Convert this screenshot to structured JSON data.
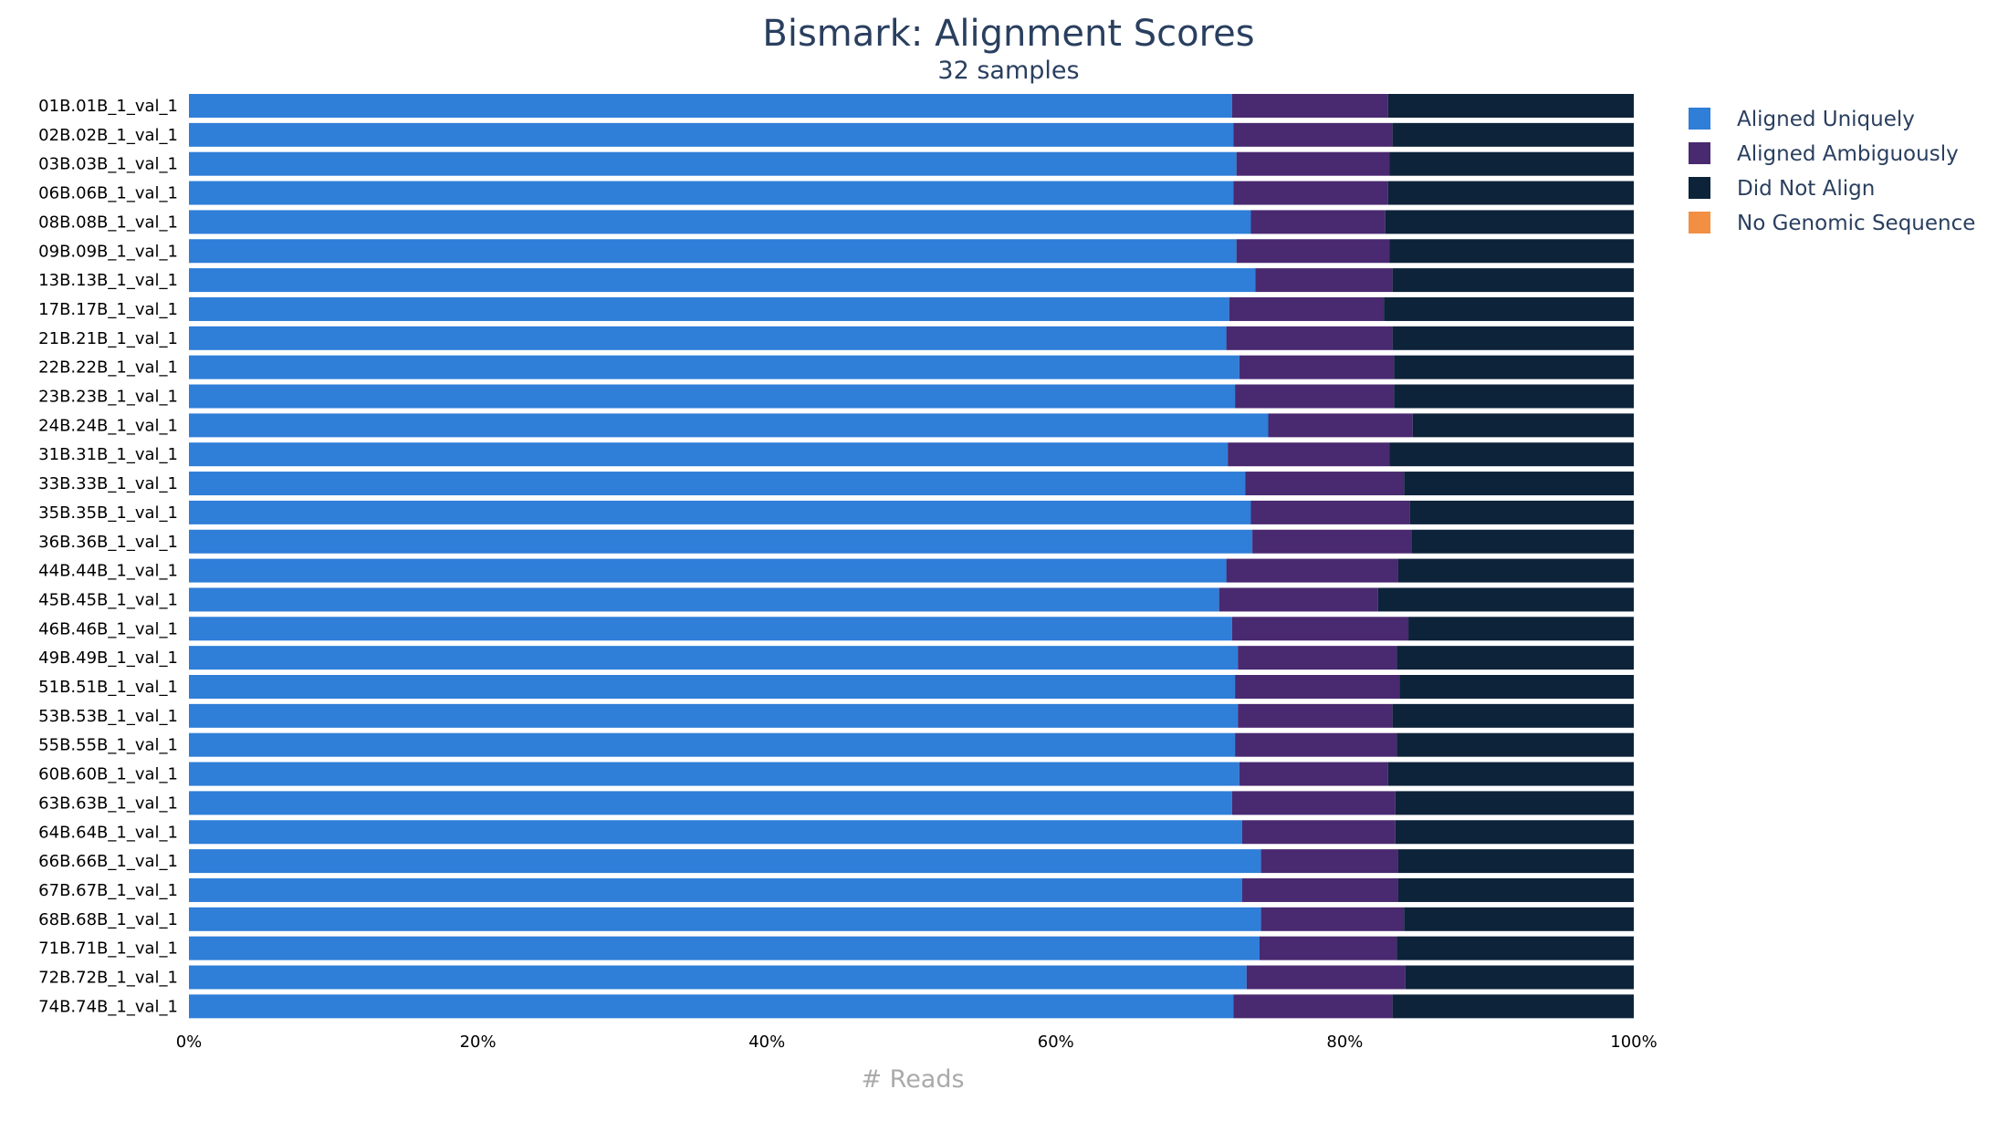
{
  "chart_data": {
    "type": "bar",
    "orientation": "horizontal",
    "stacked": "percent",
    "title": "Bismark: Alignment Scores",
    "subtitle": "32 samples",
    "xlabel": "# Reads",
    "xlim": [
      0,
      100
    ],
    "xticks": [
      "0%",
      "20%",
      "40%",
      "60%",
      "80%",
      "100%"
    ],
    "grid": false,
    "legend": "right",
    "categories": [
      "01B.01B_1_val_1",
      "02B.02B_1_val_1",
      "03B.03B_1_val_1",
      "06B.06B_1_val_1",
      "08B.08B_1_val_1",
      "09B.09B_1_val_1",
      "13B.13B_1_val_1",
      "17B.17B_1_val_1",
      "21B.21B_1_val_1",
      "22B.22B_1_val_1",
      "23B.23B_1_val_1",
      "24B.24B_1_val_1",
      "31B.31B_1_val_1",
      "33B.33B_1_val_1",
      "35B.35B_1_val_1",
      "36B.36B_1_val_1",
      "44B.44B_1_val_1",
      "45B.45B_1_val_1",
      "46B.46B_1_val_1",
      "49B.49B_1_val_1",
      "51B.51B_1_val_1",
      "53B.53B_1_val_1",
      "55B.55B_1_val_1",
      "60B.60B_1_val_1",
      "63B.63B_1_val_1",
      "64B.64B_1_val_1",
      "66B.66B_1_val_1",
      "67B.67B_1_val_1",
      "68B.68B_1_val_1",
      "71B.71B_1_val_1",
      "72B.72B_1_val_1",
      "74B.74B_1_val_1"
    ],
    "series": [
      {
        "name": "Aligned Uniquely",
        "color": "#2f7ed8",
        "values": [
          72.2,
          72.3,
          72.5,
          72.3,
          73.5,
          72.5,
          73.8,
          72.0,
          71.8,
          72.7,
          72.4,
          74.7,
          71.9,
          73.1,
          73.5,
          73.6,
          71.8,
          71.3,
          72.2,
          72.6,
          72.4,
          72.6,
          72.4,
          72.7,
          72.2,
          72.9,
          74.2,
          72.9,
          74.2,
          74.1,
          73.2,
          72.3
        ]
      },
      {
        "name": "Aligned Ambiguously",
        "color": "#492970",
        "values": [
          10.8,
          11.0,
          10.6,
          10.7,
          9.3,
          10.6,
          9.5,
          10.7,
          11.5,
          10.7,
          11.0,
          10.0,
          11.2,
          11.0,
          11.0,
          11.0,
          11.9,
          11.0,
          12.2,
          11.0,
          11.4,
          10.7,
          11.2,
          10.3,
          11.3,
          10.6,
          9.5,
          10.8,
          9.9,
          9.5,
          11.0,
          11.0
        ]
      },
      {
        "name": "Did Not Align",
        "color": "#0d233a",
        "values": [
          17.0,
          16.7,
          16.9,
          17.0,
          17.2,
          16.9,
          16.7,
          17.3,
          16.7,
          16.6,
          16.6,
          15.3,
          16.9,
          15.9,
          15.5,
          15.4,
          16.3,
          17.7,
          15.6,
          16.4,
          16.2,
          16.7,
          16.4,
          17.0,
          16.5,
          16.5,
          16.3,
          16.3,
          15.9,
          16.4,
          15.8,
          16.7
        ]
      },
      {
        "name": "No Genomic Sequence",
        "color": "#f28f43",
        "values": [
          0,
          0,
          0,
          0,
          0,
          0,
          0,
          0,
          0,
          0,
          0,
          0,
          0,
          0,
          0,
          0,
          0,
          0,
          0,
          0,
          0,
          0,
          0,
          0,
          0,
          0,
          0,
          0,
          0,
          0,
          0,
          0
        ]
      }
    ]
  }
}
